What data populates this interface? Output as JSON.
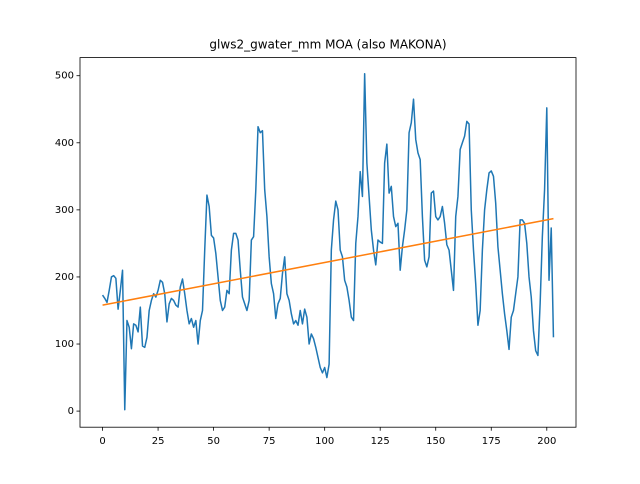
{
  "chart_data": {
    "type": "line",
    "title": "glws2_gwater_mm MOA (also MAKONA)",
    "xlim": [
      -10.15,
      213.15
    ],
    "xticks": [
      0,
      25,
      50,
      75,
      100,
      125,
      150,
      175,
      200
    ],
    "ylim": [
      -24,
      527
    ],
    "yticks": [
      0,
      100,
      200,
      300,
      400,
      500
    ],
    "series": [
      {
        "color": "#1f77b4",
        "x": [
          0,
          1,
          2,
          3,
          4,
          5,
          6,
          7,
          8,
          9,
          10,
          11,
          12,
          13,
          14,
          15,
          16,
          17,
          18,
          19,
          20,
          21,
          22,
          23,
          24,
          25,
          26,
          27,
          28,
          29,
          30,
          31,
          32,
          33,
          34,
          35,
          36,
          37,
          38,
          39,
          40,
          41,
          42,
          43,
          44,
          45,
          46,
          47,
          48,
          49,
          50,
          51,
          52,
          53,
          54,
          55,
          56,
          57,
          58,
          59,
          60,
          61,
          62,
          63,
          64,
          65,
          66,
          67,
          68,
          69,
          70,
          71,
          72,
          73,
          74,
          75,
          76,
          77,
          78,
          79,
          80,
          81,
          82,
          83,
          84,
          85,
          86,
          87,
          88,
          89,
          90,
          91,
          92,
          93,
          94,
          95,
          96,
          97,
          98,
          99,
          100,
          101,
          102,
          103,
          104,
          105,
          106,
          107,
          108,
          109,
          110,
          111,
          112,
          113,
          114,
          115,
          116,
          117,
          118,
          119,
          120,
          121,
          122,
          123,
          124,
          125,
          126,
          127,
          128,
          129,
          130,
          131,
          132,
          133,
          134,
          135,
          136,
          137,
          138,
          139,
          140,
          141,
          142,
          143,
          144,
          145,
          146,
          147,
          148,
          149,
          150,
          151,
          152,
          153,
          154,
          155,
          156,
          157,
          158,
          159,
          160,
          161,
          162,
          163,
          164,
          165,
          166,
          167,
          168,
          169,
          170,
          171,
          172,
          173,
          174,
          175,
          176,
          177,
          178,
          179,
          180,
          181,
          182,
          183,
          184,
          185,
          186,
          187,
          188,
          189,
          190,
          191,
          192,
          193,
          194,
          195,
          196,
          197,
          198,
          199,
          200,
          201,
          202,
          203
        ],
        "values": [
          173,
          168,
          162,
          180,
          200,
          202,
          198,
          152,
          180,
          210,
          2,
          135,
          125,
          93,
          130,
          128,
          118,
          155,
          97,
          95,
          110,
          150,
          165,
          175,
          170,
          180,
          195,
          192,
          175,
          133,
          160,
          168,
          165,
          158,
          155,
          185,
          197,
          175,
          150,
          130,
          138,
          125,
          135,
          100,
          135,
          150,
          240,
          322,
          305,
          262,
          258,
          235,
          200,
          165,
          150,
          155,
          180,
          175,
          240,
          265,
          265,
          255,
          210,
          170,
          160,
          150,
          165,
          255,
          260,
          330,
          424,
          415,
          418,
          330,
          290,
          230,
          190,
          175,
          138,
          160,
          168,
          205,
          230,
          175,
          165,
          145,
          130,
          135,
          128,
          150,
          130,
          152,
          140,
          100,
          115,
          108,
          95,
          80,
          65,
          57,
          65,
          50,
          70,
          240,
          285,
          313,
          300,
          240,
          230,
          195,
          185,
          165,
          140,
          135,
          250,
          290,
          357,
          320,
          503,
          370,
          320,
          270,
          240,
          218,
          255,
          252,
          250,
          370,
          398,
          325,
          335,
          290,
          275,
          280,
          210,
          245,
          270,
          300,
          415,
          430,
          465,
          405,
          385,
          375,
          290,
          225,
          215,
          230,
          325,
          328,
          290,
          285,
          290,
          305,
          280,
          248,
          240,
          210,
          180,
          290,
          320,
          390,
          400,
          410,
          432,
          428,
          300,
          240,
          190,
          128,
          150,
          240,
          300,
          330,
          355,
          358,
          350,
          310,
          245,
          210,
          175,
          145,
          120,
          92,
          140,
          150,
          175,
          200,
          285,
          285,
          280,
          250,
          200,
          170,
          120,
          90,
          83,
          160,
          260,
          330,
          452,
          195,
          273,
          110
        ]
      },
      {
        "color": "#ff7f0e",
        "x": [
          0,
          203
        ],
        "values": [
          158,
          287
        ]
      }
    ]
  }
}
